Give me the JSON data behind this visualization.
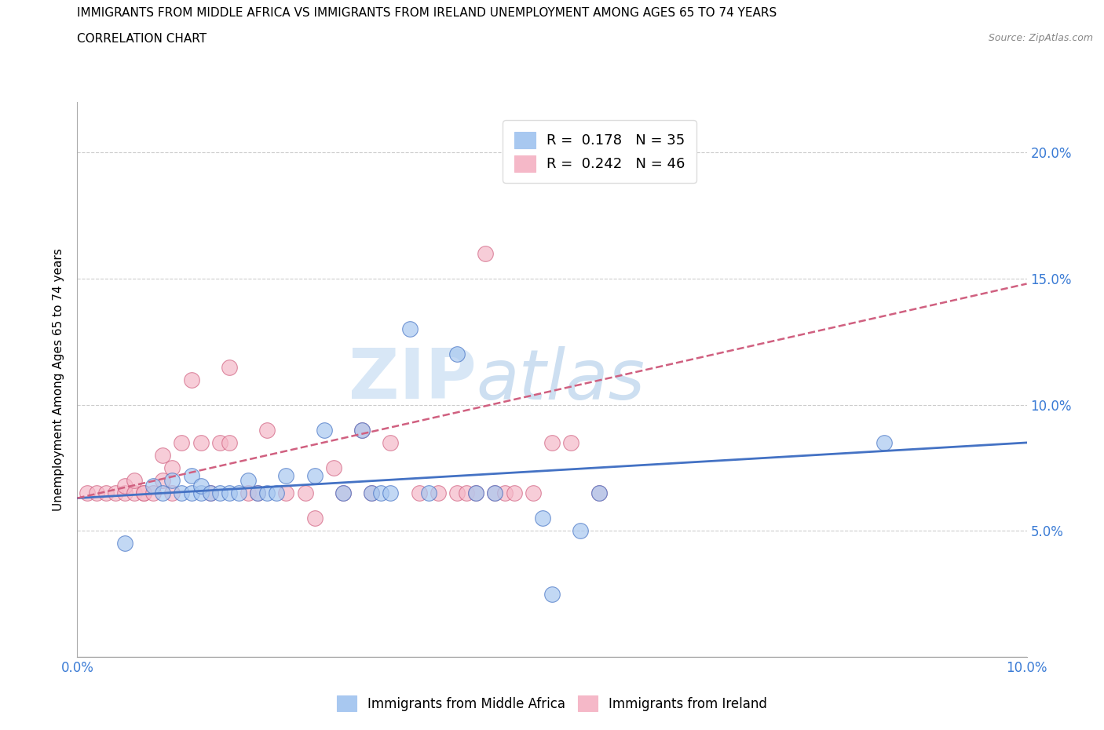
{
  "title_line1": "IMMIGRANTS FROM MIDDLE AFRICA VS IMMIGRANTS FROM IRELAND UNEMPLOYMENT AMONG AGES 65 TO 74 YEARS",
  "title_line2": "CORRELATION CHART",
  "source_text": "Source: ZipAtlas.com",
  "ylabel": "Unemployment Among Ages 65 to 74 years",
  "xlim": [
    0.0,
    0.1
  ],
  "ylim": [
    0.0,
    0.22
  ],
  "x_ticks": [
    0.0,
    0.01,
    0.02,
    0.03,
    0.04,
    0.05,
    0.06,
    0.07,
    0.08,
    0.09,
    0.1
  ],
  "x_tick_labels": [
    "0.0%",
    "",
    "",
    "",
    "",
    "",
    "",
    "",
    "",
    "",
    "10.0%"
  ],
  "y_ticks": [
    0.0,
    0.05,
    0.1,
    0.15,
    0.2
  ],
  "y_tick_labels_right": [
    "",
    "5.0%",
    "10.0%",
    "15.0%",
    "20.0%"
  ],
  "color_blue": "#a8c8f0",
  "color_pink": "#f5b8c8",
  "color_blue_dark": "#4472c4",
  "color_pink_dark": "#d06080",
  "watermark_zip": "ZIP",
  "watermark_atlas": "atlas",
  "blue_scatter_x": [
    0.005,
    0.008,
    0.009,
    0.01,
    0.011,
    0.012,
    0.012,
    0.013,
    0.013,
    0.014,
    0.015,
    0.016,
    0.017,
    0.018,
    0.019,
    0.02,
    0.021,
    0.022,
    0.025,
    0.026,
    0.028,
    0.03,
    0.031,
    0.032,
    0.033,
    0.035,
    0.037,
    0.04,
    0.042,
    0.044,
    0.049,
    0.053,
    0.055,
    0.085,
    0.05
  ],
  "blue_scatter_y": [
    0.045,
    0.068,
    0.065,
    0.07,
    0.065,
    0.065,
    0.072,
    0.065,
    0.068,
    0.065,
    0.065,
    0.065,
    0.065,
    0.07,
    0.065,
    0.065,
    0.065,
    0.072,
    0.072,
    0.09,
    0.065,
    0.09,
    0.065,
    0.065,
    0.065,
    0.13,
    0.065,
    0.12,
    0.065,
    0.065,
    0.055,
    0.05,
    0.065,
    0.085,
    0.025
  ],
  "pink_scatter_x": [
    0.001,
    0.002,
    0.003,
    0.004,
    0.005,
    0.005,
    0.006,
    0.006,
    0.007,
    0.007,
    0.008,
    0.009,
    0.009,
    0.01,
    0.01,
    0.011,
    0.012,
    0.013,
    0.014,
    0.015,
    0.016,
    0.016,
    0.018,
    0.019,
    0.02,
    0.022,
    0.024,
    0.025,
    0.027,
    0.028,
    0.03,
    0.031,
    0.033,
    0.036,
    0.038,
    0.04,
    0.041,
    0.042,
    0.043,
    0.044,
    0.045,
    0.046,
    0.048,
    0.05,
    0.052,
    0.055
  ],
  "pink_scatter_y": [
    0.065,
    0.065,
    0.065,
    0.065,
    0.065,
    0.068,
    0.065,
    0.07,
    0.065,
    0.065,
    0.065,
    0.07,
    0.08,
    0.065,
    0.075,
    0.085,
    0.11,
    0.085,
    0.065,
    0.085,
    0.085,
    0.115,
    0.065,
    0.065,
    0.09,
    0.065,
    0.065,
    0.055,
    0.075,
    0.065,
    0.09,
    0.065,
    0.085,
    0.065,
    0.065,
    0.065,
    0.065,
    0.065,
    0.16,
    0.065,
    0.065,
    0.065,
    0.065,
    0.085,
    0.085,
    0.065
  ],
  "blue_trend_x0": 0.0,
  "blue_trend_x1": 0.1,
  "blue_trend_y0": 0.063,
  "blue_trend_y1": 0.085,
  "pink_trend_x0": 0.0,
  "pink_trend_x1": 0.1,
  "pink_trend_y0": 0.063,
  "pink_trend_y1": 0.148,
  "legend_label1": "R =  0.178   N = 35",
  "legend_label2": "R =  0.242   N = 46",
  "bottom_legend1": "Immigrants from Middle Africa",
  "bottom_legend2": "Immigrants from Ireland"
}
